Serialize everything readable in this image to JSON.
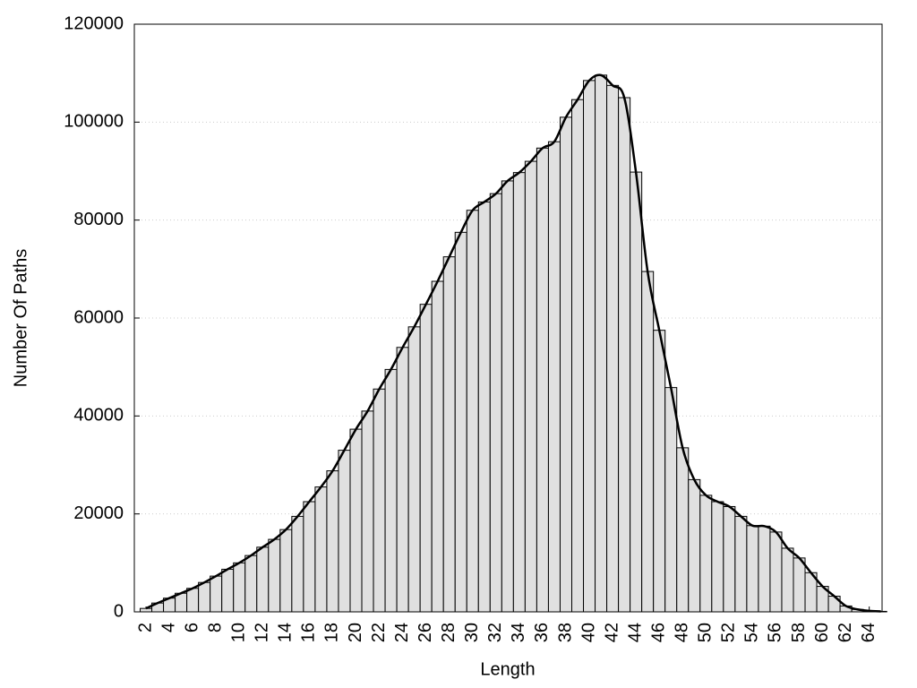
{
  "chart_data": {
    "type": "bar",
    "xlabel": "Length",
    "ylabel": "Number Of Paths",
    "x": [
      2,
      3,
      4,
      5,
      6,
      7,
      8,
      9,
      10,
      11,
      12,
      13,
      14,
      15,
      16,
      17,
      18,
      19,
      20,
      21,
      22,
      23,
      24,
      25,
      26,
      27,
      28,
      29,
      30,
      31,
      32,
      33,
      34,
      35,
      36,
      37,
      38,
      39,
      40,
      41,
      42,
      43,
      44,
      45,
      46,
      47,
      48,
      49,
      50,
      51,
      52,
      53,
      54,
      55,
      56,
      57,
      58,
      59,
      60,
      61,
      62,
      63,
      64,
      65
    ],
    "values": [
      700,
      1800,
      2800,
      3800,
      4800,
      6000,
      7300,
      8700,
      10000,
      11500,
      13200,
      14800,
      16800,
      19500,
      22500,
      25500,
      28800,
      33000,
      37300,
      41000,
      45500,
      49500,
      54000,
      58200,
      62800,
      67500,
      72500,
      77500,
      82000,
      83700,
      85400,
      88000,
      89700,
      92000,
      94700,
      96000,
      101000,
      104600,
      108500,
      109600,
      107500,
      105000,
      89800,
      69500,
      57500,
      45800,
      33500,
      27000,
      23800,
      22500,
      21500,
      19500,
      17600,
      17500,
      16300,
      13000,
      11000,
      8000,
      5200,
      3200,
      1200,
      500,
      200,
      100
    ],
    "color": "#e0e0e0",
    "line_color": "#000000",
    "smooth_line": true,
    "xlim": [
      1,
      65.1
    ],
    "xticks": [
      2,
      4,
      6,
      8,
      10,
      12,
      14,
      16,
      18,
      20,
      22,
      24,
      26,
      28,
      30,
      32,
      34,
      36,
      38,
      40,
      42,
      44,
      46,
      48,
      50,
      52,
      54,
      56,
      58,
      60,
      62,
      64
    ],
    "ylim": [
      0,
      120000
    ],
    "yticks": [
      0,
      20000,
      40000,
      60000,
      80000,
      100000,
      120000
    ],
    "grid": true
  }
}
